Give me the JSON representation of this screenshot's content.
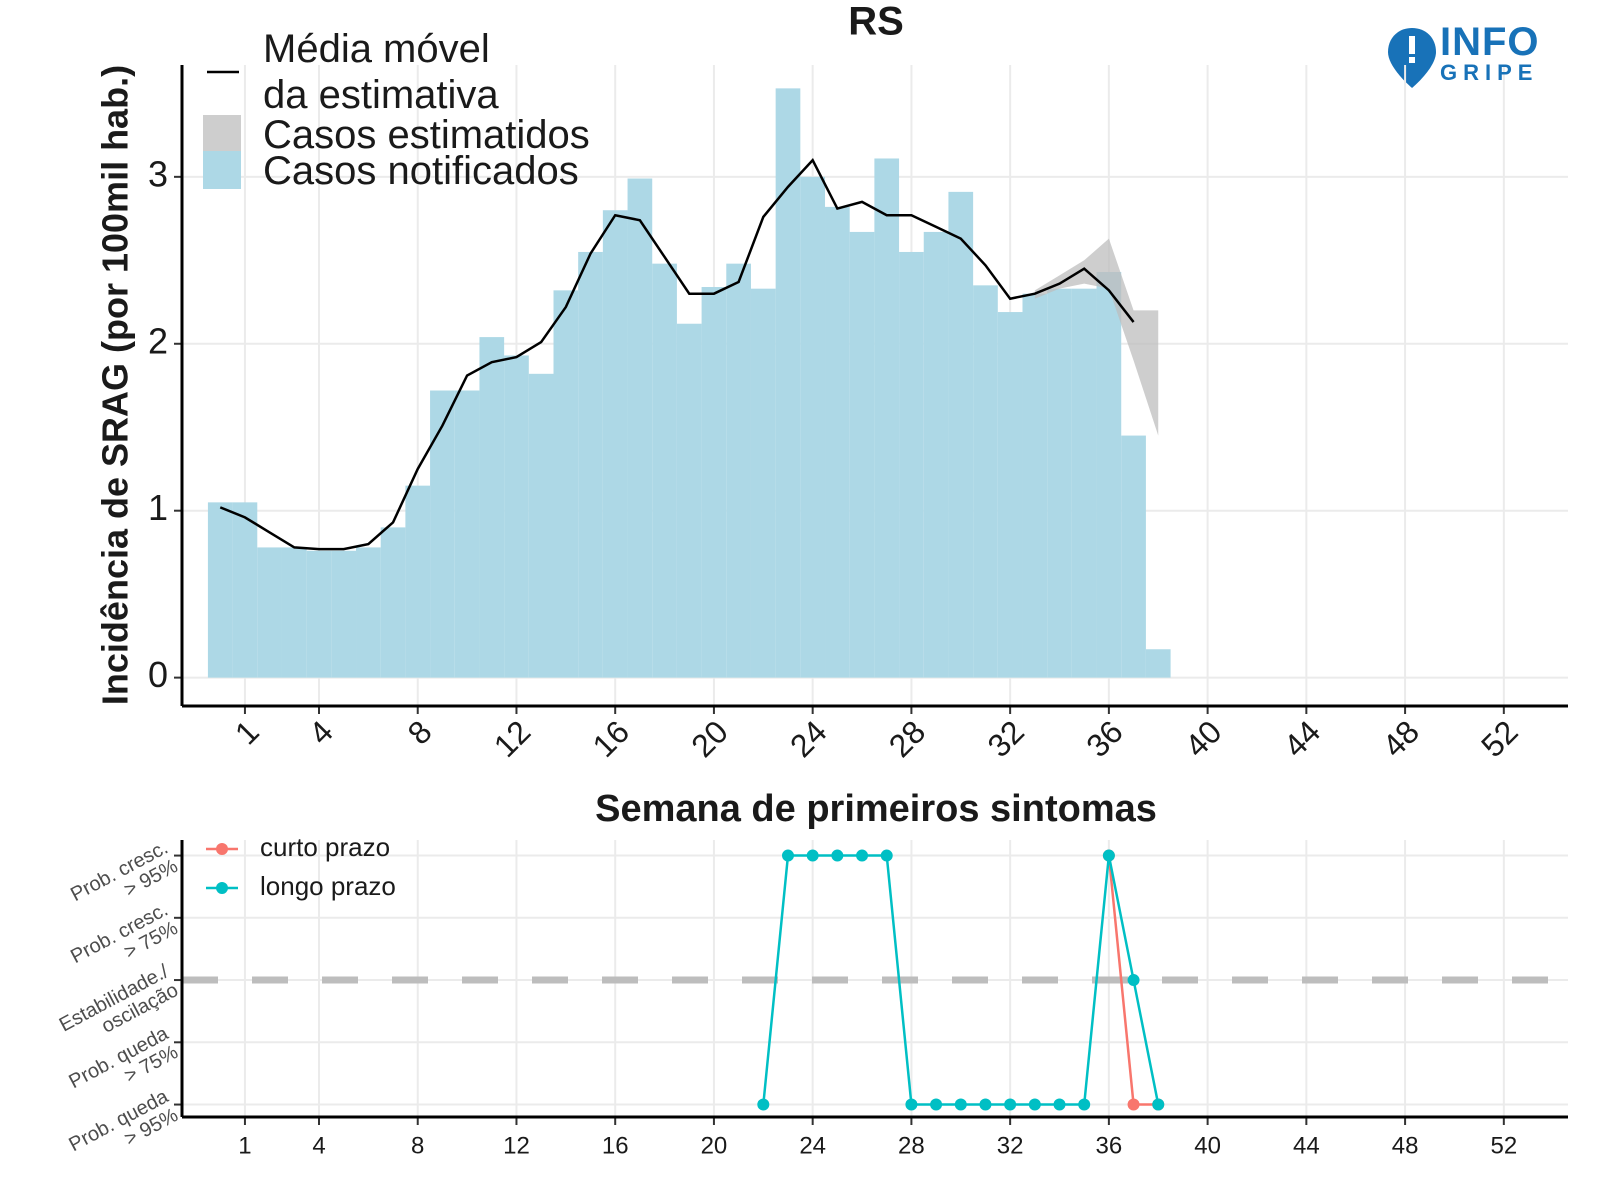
{
  "logo": {
    "top": "INFO",
    "bottom": "GRIPE"
  },
  "chart_data": [
    {
      "type": "bar",
      "title": "RS",
      "xlabel": "Semana de primeiros sintomas",
      "ylabel": "Incidência de SRAG (por 100mil hab.)",
      "xlim": [
        -1.55,
        54.6
      ],
      "ylim": [
        -0.17,
        3.67
      ],
      "xticks": [
        1,
        4,
        8,
        12,
        16,
        20,
        24,
        28,
        32,
        36,
        40,
        44,
        48,
        52
      ],
      "yticks": [
        0,
        1,
        2,
        3
      ],
      "grid": true,
      "legend": "top-left",
      "series": [
        {
          "name": "Casos notificados",
          "color": "#add8e6",
          "kind": "bar",
          "x": [
            0,
            1,
            2,
            3,
            4,
            5,
            6,
            7,
            8,
            9,
            10,
            11,
            12,
            13,
            14,
            15,
            16,
            17,
            18,
            19,
            20,
            21,
            22,
            23,
            24,
            25,
            26,
            27,
            28,
            29,
            30,
            31,
            32,
            33,
            34,
            35,
            36,
            37,
            38
          ],
          "values": [
            1.05,
            1.05,
            0.78,
            0.78,
            0.76,
            0.76,
            0.78,
            0.9,
            1.15,
            1.72,
            1.72,
            2.04,
            1.93,
            1.82,
            2.32,
            2.55,
            2.8,
            2.99,
            2.48,
            2.12,
            2.34,
            2.48,
            2.33,
            3.53,
            3.0,
            2.82,
            2.67,
            3.11,
            2.55,
            2.67,
            2.91,
            2.35,
            2.19,
            2.3,
            2.33,
            2.33,
            2.43,
            1.45,
            0.17
          ]
        },
        {
          "name": "Casos estimatidos",
          "color": "#bebebe",
          "kind": "band",
          "x": [
            33,
            34,
            35,
            36,
            37,
            38
          ],
          "lower": [
            2.27,
            2.33,
            2.36,
            2.33,
            1.9,
            1.45
          ],
          "upper": [
            2.32,
            2.41,
            2.5,
            2.63,
            2.2,
            2.2
          ]
        },
        {
          "name": "Média móvel\nda estimativa",
          "color": "#000000",
          "kind": "line",
          "x": [
            0,
            1,
            2,
            3,
            4,
            5,
            6,
            7,
            8,
            9,
            10,
            11,
            12,
            13,
            14,
            15,
            16,
            17,
            18,
            19,
            20,
            21,
            22,
            23,
            24,
            25,
            26,
            27,
            28,
            29,
            30,
            31,
            32,
            33,
            34,
            35,
            36,
            37
          ],
          "values": [
            1.02,
            0.96,
            0.87,
            0.78,
            0.77,
            0.77,
            0.8,
            0.93,
            1.25,
            1.51,
            1.81,
            1.89,
            1.92,
            2.01,
            2.22,
            2.54,
            2.77,
            2.74,
            2.52,
            2.3,
            2.3,
            2.37,
            2.76,
            2.94,
            3.1,
            2.81,
            2.85,
            2.77,
            2.77,
            2.7,
            2.63,
            2.47,
            2.27,
            2.3,
            2.36,
            2.45,
            2.32,
            2.13
          ]
        }
      ]
    },
    {
      "type": "line",
      "xlim": [
        -1.55,
        54.6
      ],
      "ylim": [
        -2.2,
        2.25
      ],
      "xticks": [
        1,
        4,
        8,
        12,
        16,
        20,
        24,
        28,
        32,
        36,
        40,
        44,
        48,
        52
      ],
      "yticks": [
        {
          "value": -2,
          "label": "Prob. queda\n> 95%"
        },
        {
          "value": -1,
          "label": "Prob. queda\n> 75%"
        },
        {
          "value": 0,
          "label": "Estabilidade./\noscilação"
        },
        {
          "value": 1,
          "label": "Prob. cresc.\n> 75%"
        },
        {
          "value": 2,
          "label": "Prob. cresc.\n> 95%"
        }
      ],
      "grid": true,
      "legend": "top-left",
      "reference_line": 0,
      "series": [
        {
          "name": "curto prazo",
          "color": "#f8766d",
          "x": [
            36,
            37,
            38
          ],
          "values": [
            2,
            -2,
            -2
          ]
        },
        {
          "name": "longo prazo",
          "color": "#00bfc4",
          "x": [
            22,
            23,
            24,
            25,
            26,
            27,
            28,
            29,
            30,
            31,
            32,
            33,
            34,
            35,
            36,
            37,
            38
          ],
          "values": [
            -2,
            2,
            2,
            2,
            2,
            2,
            -2,
            -2,
            -2,
            -2,
            -2,
            -2,
            -2,
            -2,
            2,
            0,
            -2
          ]
        }
      ]
    }
  ]
}
